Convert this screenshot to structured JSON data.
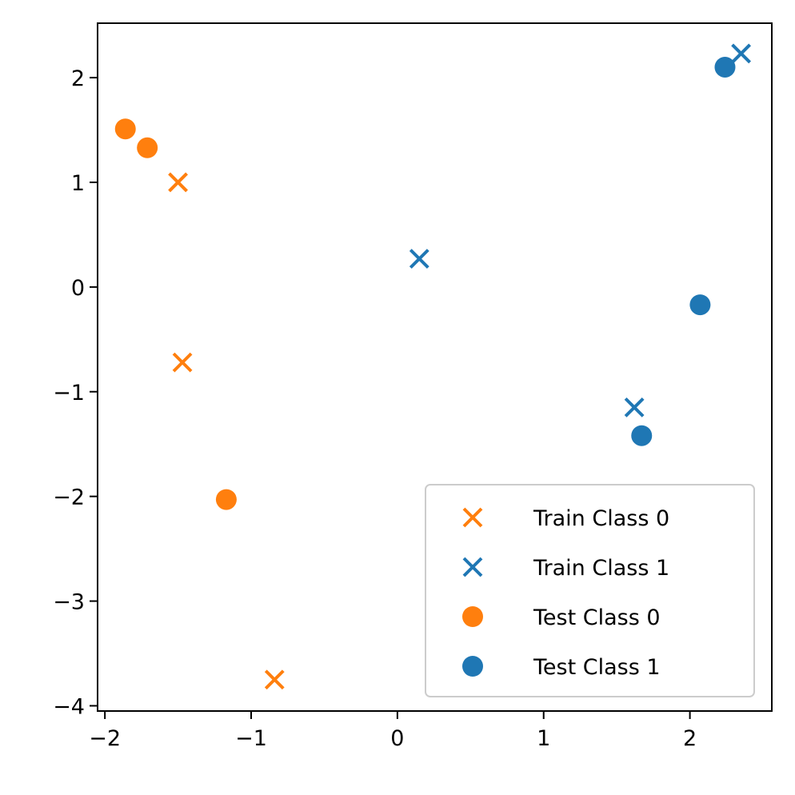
{
  "chart_data": {
    "type": "scatter",
    "title": "",
    "xlabel": "",
    "ylabel": "",
    "xlim": [
      -2.05,
      2.56
    ],
    "ylim": [
      -4.05,
      2.52
    ],
    "grid": false,
    "legend_position": "bottom-right",
    "x_ticks": [
      {
        "value": -2,
        "label": "−2"
      },
      {
        "value": -1,
        "label": "−1"
      },
      {
        "value": 0,
        "label": "0"
      },
      {
        "value": 1,
        "label": "1"
      },
      {
        "value": 2,
        "label": "2"
      }
    ],
    "y_ticks": [
      {
        "value": 2,
        "label": "2"
      },
      {
        "value": 1,
        "label": "1"
      },
      {
        "value": 0,
        "label": "0"
      },
      {
        "value": -1,
        "label": "−1"
      },
      {
        "value": -2,
        "label": "−2"
      },
      {
        "value": -3,
        "label": "−3"
      },
      {
        "value": -4,
        "label": "−4"
      }
    ],
    "series": [
      {
        "name": "Train Class 0",
        "marker": "x",
        "color": "#ff7f0e",
        "points": [
          [
            -1.5,
            1.0
          ],
          [
            -1.47,
            -0.72
          ],
          [
            -0.84,
            -3.75
          ]
        ]
      },
      {
        "name": "Train Class 1",
        "marker": "x",
        "color": "#1f77b4",
        "points": [
          [
            2.35,
            2.23
          ],
          [
            0.15,
            0.27
          ],
          [
            1.62,
            -1.15
          ]
        ]
      },
      {
        "name": "Test Class 0",
        "marker": "o",
        "color": "#ff7f0e",
        "points": [
          [
            -1.86,
            1.51
          ],
          [
            -1.71,
            1.33
          ],
          [
            -1.17,
            -2.03
          ]
        ]
      },
      {
        "name": "Test Class 1",
        "marker": "o",
        "color": "#1f77b4",
        "points": [
          [
            2.24,
            2.1
          ],
          [
            2.07,
            -0.17
          ],
          [
            1.67,
            -1.42
          ]
        ]
      }
    ]
  }
}
